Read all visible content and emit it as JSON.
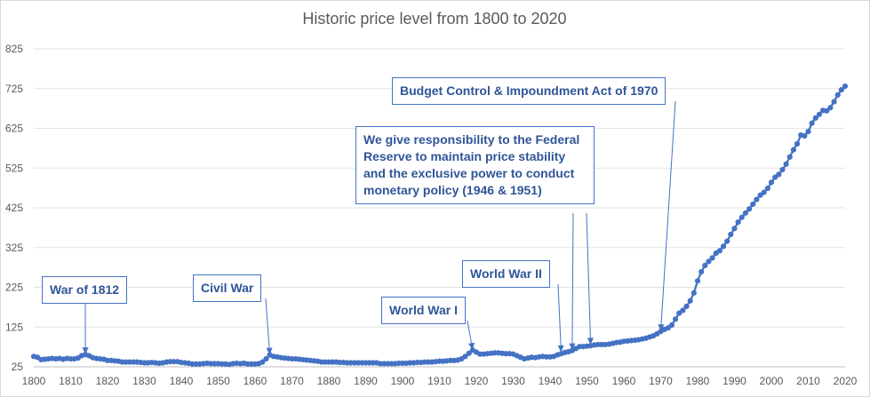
{
  "chart_data": {
    "type": "line",
    "title": "Historic price level from 1800 to 2020",
    "xlabel": "",
    "ylabel": "",
    "xlim": [
      1800,
      2020
    ],
    "ylim": [
      25,
      825
    ],
    "x_ticks": [
      "1800",
      "1810",
      "1820",
      "1830",
      "1840",
      "1850",
      "1860",
      "1870",
      "1880",
      "1890",
      "1900",
      "1910",
      "1920",
      "1930",
      "1940",
      "1950",
      "1960",
      "1970",
      "1980",
      "1990",
      "2000",
      "2010",
      "2020"
    ],
    "y_ticks": [
      "25",
      "125",
      "225",
      "325",
      "425",
      "525",
      "625",
      "725",
      "825"
    ],
    "grid": "horizontal",
    "series": [
      {
        "color": "#4472c4",
        "marker": "circle",
        "x": [
          1800,
          1801,
          1802,
          1803,
          1804,
          1805,
          1806,
          1807,
          1808,
          1809,
          1810,
          1811,
          1812,
          1813,
          1814,
          1815,
          1816,
          1817,
          1818,
          1819,
          1820,
          1821,
          1822,
          1823,
          1824,
          1825,
          1826,
          1827,
          1828,
          1829,
          1830,
          1831,
          1832,
          1833,
          1834,
          1835,
          1836,
          1837,
          1838,
          1839,
          1840,
          1841,
          1842,
          1843,
          1844,
          1845,
          1846,
          1847,
          1848,
          1849,
          1850,
          1851,
          1852,
          1853,
          1854,
          1855,
          1856,
          1857,
          1858,
          1859,
          1860,
          1861,
          1862,
          1863,
          1864,
          1865,
          1866,
          1867,
          1868,
          1869,
          1870,
          1871,
          1872,
          1873,
          1874,
          1875,
          1876,
          1877,
          1878,
          1879,
          1880,
          1881,
          1882,
          1883,
          1884,
          1885,
          1886,
          1887,
          1888,
          1889,
          1890,
          1891,
          1892,
          1893,
          1894,
          1895,
          1896,
          1897,
          1898,
          1899,
          1900,
          1901,
          1902,
          1903,
          1904,
          1905,
          1906,
          1907,
          1908,
          1909,
          1910,
          1911,
          1912,
          1913,
          1914,
          1915,
          1916,
          1917,
          1918,
          1919,
          1920,
          1921,
          1922,
          1923,
          1924,
          1925,
          1926,
          1927,
          1928,
          1929,
          1930,
          1931,
          1932,
          1933,
          1934,
          1935,
          1936,
          1937,
          1938,
          1939,
          1940,
          1941,
          1942,
          1943,
          1944,
          1945,
          1946,
          1947,
          1948,
          1949,
          1950,
          1951,
          1952,
          1953,
          1954,
          1955,
          1956,
          1957,
          1958,
          1959,
          1960,
          1961,
          1962,
          1963,
          1964,
          1965,
          1966,
          1967,
          1968,
          1969,
          1970,
          1971,
          1972,
          1973,
          1974,
          1975,
          1976,
          1977,
          1978,
          1979,
          1980,
          1981,
          1982,
          1983,
          1984,
          1985,
          1986,
          1987,
          1988,
          1989,
          1990,
          1991,
          1992,
          1993,
          1994,
          1995,
          1996,
          1997,
          1998,
          1999,
          2000,
          2001,
          2002,
          2003,
          2004,
          2005,
          2006,
          2007,
          2008,
          2009,
          2010,
          2011,
          2012,
          2013,
          2014,
          2015,
          2016,
          2017,
          2018,
          2019,
          2020
        ],
        "y": [
          51,
          49,
          43,
          44,
          45,
          46,
          45,
          46,
          44,
          46,
          45,
          45,
          47,
          53,
          56,
          53,
          48,
          46,
          45,
          44,
          41,
          41,
          40,
          39,
          37,
          37,
          37,
          37,
          37,
          36,
          35,
          35,
          36,
          35,
          34,
          35,
          37,
          38,
          38,
          38,
          36,
          35,
          34,
          32,
          32,
          32,
          33,
          34,
          33,
          33,
          33,
          32,
          32,
          31,
          33,
          34,
          33,
          34,
          32,
          32,
          32,
          33,
          37,
          45,
          55,
          51,
          50,
          48,
          47,
          46,
          45,
          45,
          44,
          43,
          42,
          41,
          40,
          39,
          37,
          37,
          37,
          37,
          37,
          36,
          36,
          35,
          35,
          35,
          35,
          35,
          35,
          35,
          35,
          35,
          33,
          33,
          33,
          33,
          33,
          34,
          34,
          34,
          35,
          35,
          36,
          36,
          37,
          37,
          37,
          38,
          39,
          39,
          40,
          41,
          41,
          42,
          45,
          51,
          59,
          67,
          62,
          57,
          57,
          58,
          59,
          60,
          60,
          59,
          58,
          58,
          57,
          53,
          49,
          45,
          47,
          49,
          48,
          50,
          51,
          50,
          50,
          51,
          55,
          58,
          61,
          63,
          66,
          71,
          76,
          76,
          77,
          78,
          80,
          81,
          81,
          81,
          82,
          84,
          86,
          87,
          89,
          90,
          91,
          92,
          93,
          95,
          97,
          100,
          103,
          108,
          114,
          119,
          123,
          130,
          145,
          160,
          167,
          177,
          191,
          211,
          241,
          264,
          280,
          290,
          299,
          311,
          317,
          328,
          341,
          358,
          373,
          389,
          401,
          412,
          422,
          434,
          446,
          457,
          464,
          474,
          489,
          502,
          509,
          521,
          535,
          553,
          571,
          586,
          608,
          606,
          617,
          638,
          651,
          660,
          670,
          669,
          677,
          692,
          709,
          722,
          731
        ]
      }
    ],
    "annotations": [
      {
        "text": "War of 1812",
        "x": 1814,
        "y": 56
      },
      {
        "text": "Civil War",
        "x": 1864,
        "y": 55
      },
      {
        "text": "World War I",
        "x": 1919,
        "y": 67
      },
      {
        "text": "World War II",
        "x": 1943,
        "y": 61
      },
      {
        "text": "We give responsibility to the Federal Reserve to maintain price stability and the exclusive power to conduct monetary policy (1946 & 1951)",
        "x": [
          1946,
          1951
        ],
        "y": [
          66,
          80
        ]
      },
      {
        "text": "Budget Control & Impoundment Act of 1970",
        "x": 1970,
        "y": 114
      }
    ]
  },
  "callouts": {
    "war_1812": "War of 1812",
    "civil_war": "Civil War",
    "wwi": "World War I",
    "wwii": "World War II",
    "fed_line1": "We give responsibility to the Federal",
    "fed_line2": "Reserve to maintain price stability",
    "fed_line3": "and the exclusive power to conduct",
    "fed_line4": "monetary policy (1946 & 1951)",
    "budget": "Budget Control & Impoundment Act of 1970"
  }
}
